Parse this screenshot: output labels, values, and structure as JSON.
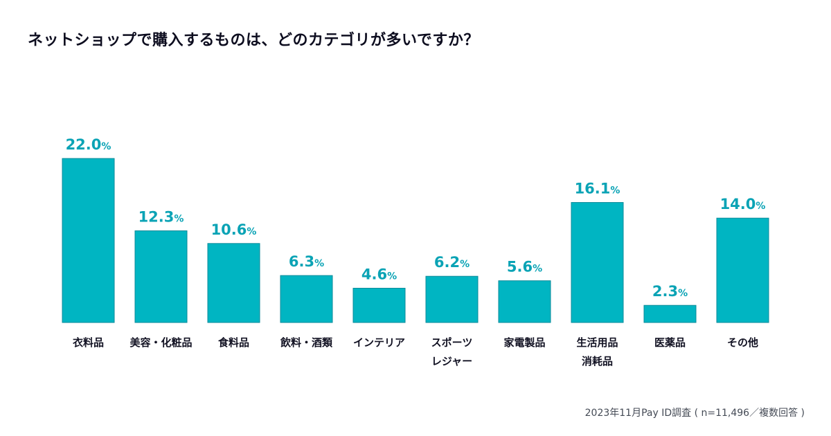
{
  "chart_data": {
    "type": "bar",
    "title": "ネットショップで購入するものは、どのカテゴリが多いですか？",
    "categories": [
      [
        "衣料品"
      ],
      [
        "美容・化粧品"
      ],
      [
        "食料品"
      ],
      [
        "飲料・酒類"
      ],
      [
        "インテリア"
      ],
      [
        "スポーツ",
        "レジャー"
      ],
      [
        "家電製品"
      ],
      [
        "生活用品",
        "消耗品"
      ],
      [
        "医薬品"
      ],
      [
        "その他"
      ]
    ],
    "values": [
      22.0,
      12.3,
      10.6,
      6.3,
      4.6,
      6.2,
      5.6,
      16.1,
      2.3,
      14.0
    ],
    "value_suffix": "%",
    "xlabel": "",
    "ylabel": "",
    "ylim": [
      0,
      22.0
    ],
    "grid": false,
    "legend": "none",
    "bar_color": "#00b5c2",
    "bar_stroke": "#0a8a99",
    "label_color": "#0aa3b5",
    "note": "2023年11月Pay ID調査 ( n=11,496／複数回答 )"
  }
}
